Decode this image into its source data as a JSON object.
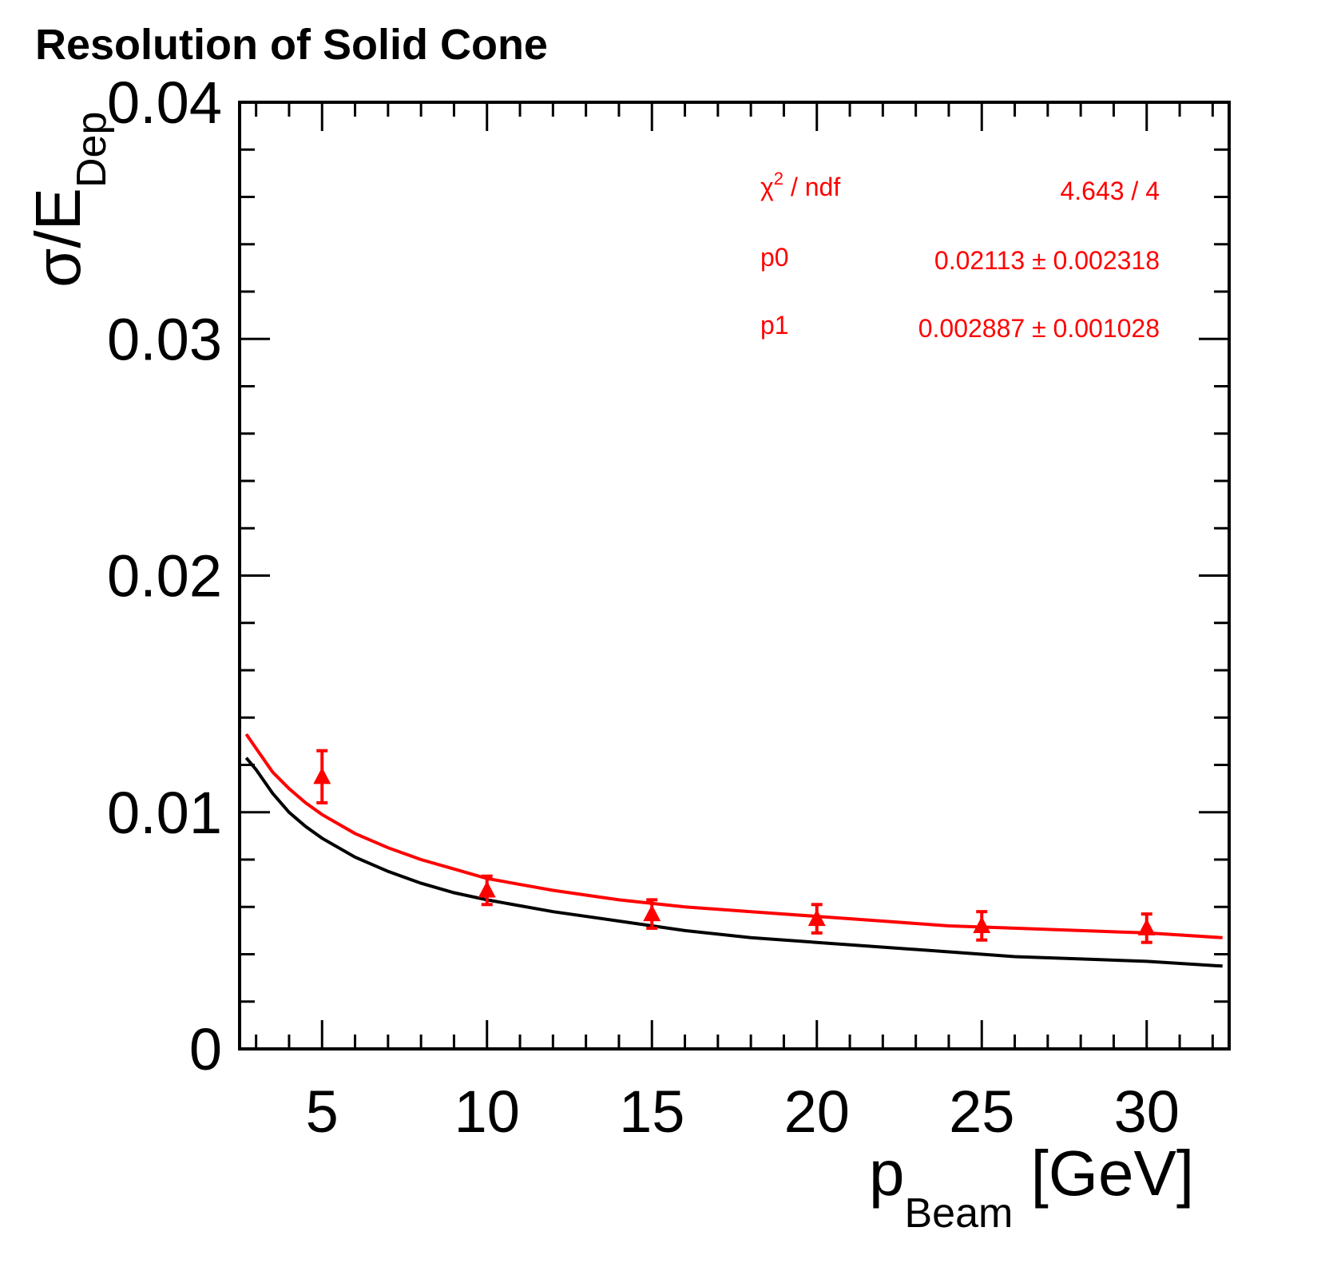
{
  "chart_data": {
    "type": "scatter",
    "title": "Resolution of Solid Cone",
    "xlabel": {
      "main": "p",
      "sub": "Beam",
      "unit": " [GeV]"
    },
    "ylabel": {
      "main": "σ/E",
      "sub": "Dep"
    },
    "xlim": [
      2.5,
      32.5
    ],
    "ylim": [
      0,
      0.04
    ],
    "xticks": [
      5,
      10,
      15,
      20,
      25,
      30
    ],
    "xtick_labels": [
      "5",
      "10",
      "15",
      "20",
      "25",
      "30"
    ],
    "yticks": [
      0,
      0.01,
      0.02,
      0.03,
      0.04
    ],
    "ytick_labels": [
      "0",
      "0.01",
      "0.02",
      "0.03",
      "0.04"
    ],
    "grid": false,
    "series": [
      {
        "kind": "points",
        "color": "#ff0000",
        "x": [
          5,
          10,
          15,
          20,
          25,
          30
        ],
        "y": [
          0.0115,
          0.0067,
          0.0057,
          0.0055,
          0.0052,
          0.0051
        ],
        "yerr": [
          0.0011,
          0.0006,
          0.0006,
          0.0006,
          0.0006,
          0.0006
        ]
      },
      {
        "kind": "curve",
        "color": "#ff0000",
        "x": [
          2.7,
          3,
          3.5,
          4,
          4.5,
          5,
          6,
          7,
          8,
          9,
          10,
          12,
          14,
          16,
          18,
          20,
          22,
          24,
          26,
          28,
          30,
          32.3
        ],
        "y": [
          0.0133,
          0.0127,
          0.0117,
          0.011,
          0.0104,
          0.0099,
          0.0091,
          0.0085,
          0.008,
          0.0076,
          0.0072,
          0.0067,
          0.0063,
          0.006,
          0.0058,
          0.0056,
          0.0054,
          0.0052,
          0.0051,
          0.005,
          0.0049,
          0.0047
        ]
      },
      {
        "kind": "curve",
        "color": "#000000",
        "x": [
          2.7,
          3,
          3.5,
          4,
          4.5,
          5,
          6,
          7,
          8,
          9,
          10,
          12,
          14,
          16,
          18,
          20,
          22,
          24,
          26,
          28,
          30,
          32.3
        ],
        "y": [
          0.0123,
          0.0118,
          0.0108,
          0.01,
          0.0094,
          0.0089,
          0.0081,
          0.0075,
          0.007,
          0.0066,
          0.0063,
          0.0058,
          0.0054,
          0.005,
          0.0047,
          0.0045,
          0.0043,
          0.0041,
          0.0039,
          0.0038,
          0.0037,
          0.0035
        ]
      }
    ],
    "stats_box": {
      "color": "#ff0000",
      "rows": [
        {
          "label": "χ",
          "label_sup": "2",
          "label_rest": " / ndf",
          "value": "4.643 / 4"
        },
        {
          "label": "p0",
          "label_sup": "",
          "label_rest": "",
          "value": "0.02113 ± 0.002318"
        },
        {
          "label": "p1",
          "label_sup": "",
          "label_rest": "",
          "value": "0.002887 ± 0.001028"
        }
      ]
    }
  }
}
